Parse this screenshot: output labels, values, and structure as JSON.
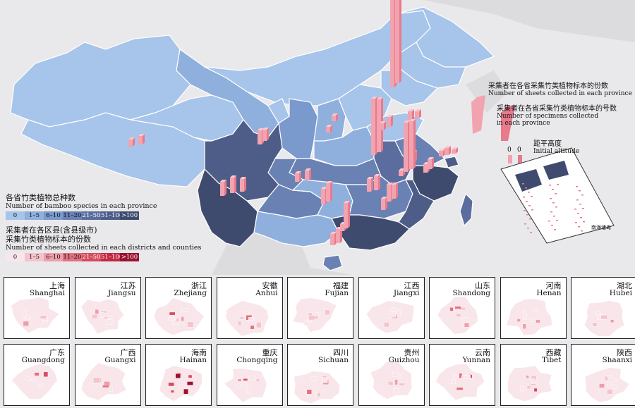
{
  "legend_species": {
    "title_zh": "各省竹类植物总种数",
    "title_en": "Number of bamboo species in each province",
    "bins": [
      {
        "label": "0",
        "color": "#a7c4ea"
      },
      {
        "label": "1–5",
        "color": "#8fb0dd"
      },
      {
        "label": "6–10",
        "color": "#7a99cc"
      },
      {
        "label": "11–20",
        "color": "#6a81b4"
      },
      {
        "label": "21–50",
        "color": "#5a6d9e"
      },
      {
        "label": "51–100",
        "color": "#4e5d88"
      },
      {
        "label": ">100",
        "color": "#3f4b6e"
      }
    ]
  },
  "legend_sheets": {
    "title_zh_1": "采集者在各区县(含县级市)",
    "title_zh_2": "采集竹类植物标本的份数",
    "title_en": "Number of sheets collected in each districts and counties",
    "bins": [
      {
        "label": "0",
        "color": "#f9e6ea"
      },
      {
        "label": "1–5",
        "color": "#f4c4cc"
      },
      {
        "label": "6–10",
        "color": "#ee9eab"
      },
      {
        "label": "11–20",
        "color": "#e4707f"
      },
      {
        "label": "21–50",
        "color": "#d64b5f"
      },
      {
        "label": "51–100",
        "color": "#c12a44"
      },
      {
        "label": ">100",
        "color": "#9a1230"
      }
    ]
  },
  "bar_legend": {
    "sheets_zh": "采集者在各省采集竹类植物标本的份数",
    "sheets_en": "Number of sheets collected in each province",
    "specimens_zh": "采集者在各省采集竹类植物标本的号数",
    "specimens_en_1": "Number of specimens collected",
    "specimens_en_2": "in each province",
    "altitude_zh": "距平高度",
    "altitude_en": "Initial altitude",
    "zero_a": "0",
    "zero_b": "0"
  },
  "inset_label": "南海诸岛",
  "colors": {
    "bar": "#f2a3b0",
    "bar_side": "#e87a8c",
    "land": "#d7d7da",
    "sea": "#e9e9ec",
    "border": "#ffffff"
  },
  "provinces": [
    {
      "zh": "上海",
      "en": "Shanghai"
    },
    {
      "zh": "江苏",
      "en": "Jiangsu"
    },
    {
      "zh": "浙江",
      "en": "Zhejiang"
    },
    {
      "zh": "安徽",
      "en": "Anhui"
    },
    {
      "zh": "福建",
      "en": "Fujian"
    },
    {
      "zh": "江西",
      "en": "Jiangxi"
    },
    {
      "zh": "山东",
      "en": "Shandong"
    },
    {
      "zh": "河南",
      "en": "Henan"
    },
    {
      "zh": "湖北",
      "en": "Hubei"
    },
    {
      "zh": "广东",
      "en": "Guangdong"
    },
    {
      "zh": "广西",
      "en": "Guangxi"
    },
    {
      "zh": "海南",
      "en": "Hainan"
    },
    {
      "zh": "重庆",
      "en": "Chongqing"
    },
    {
      "zh": "四川",
      "en": "Sichuan"
    },
    {
      "zh": "贵州",
      "en": "Guizhou"
    },
    {
      "zh": "云南",
      "en": "Yunnan"
    },
    {
      "zh": "西藏",
      "en": "Tibet"
    },
    {
      "zh": "陕西",
      "en": "Shaanxi"
    }
  ]
}
